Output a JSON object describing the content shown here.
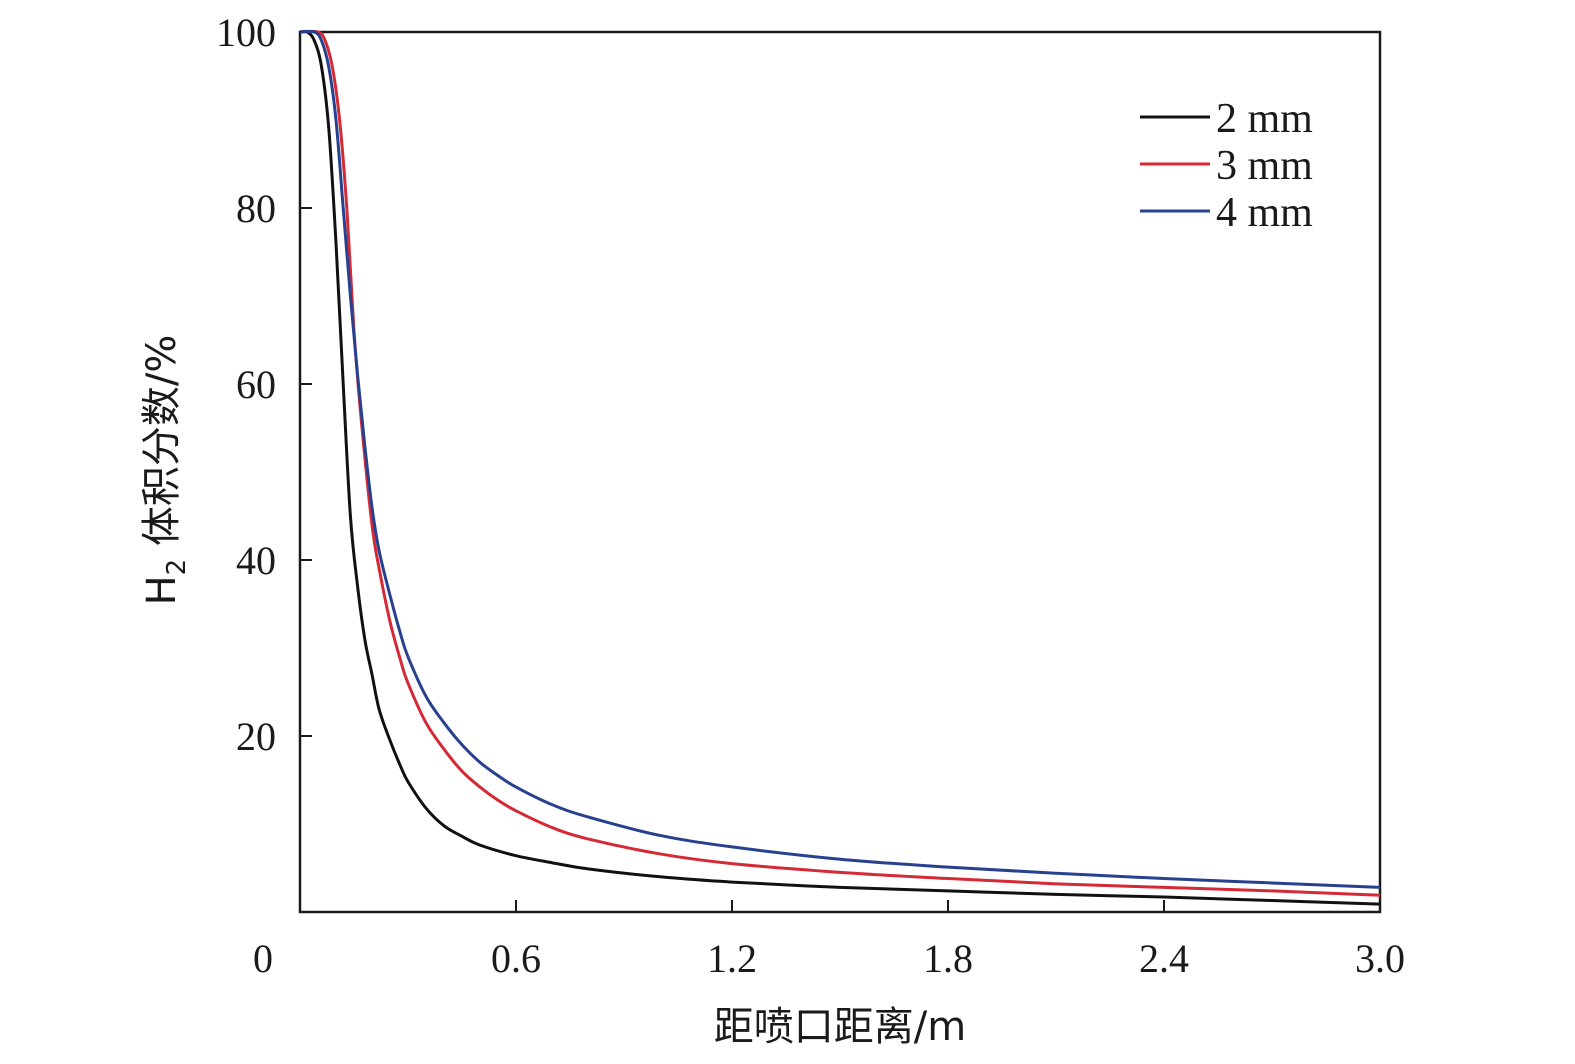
{
  "chart_data": {
    "type": "line",
    "xlabel": "距喷口距离/m",
    "ylabel_main": "H",
    "ylabel_sub": "2",
    "ylabel_rest": " 体积分数/%",
    "xlim": [
      0,
      3.0
    ],
    "ylim": [
      0,
      100
    ],
    "x_ticks": [
      0,
      0.6,
      1.2,
      1.8,
      2.4,
      3.0
    ],
    "x_tick_labels": [
      "0",
      "0.6",
      "1.2",
      "1.8",
      "2.4",
      "3.0"
    ],
    "y_ticks": [
      20,
      40,
      60,
      80,
      100
    ],
    "y_tick_labels": [
      "20",
      "40",
      "60",
      "80",
      "100"
    ],
    "grid": false,
    "legend_position": "top-right",
    "series": [
      {
        "name": "2 mm",
        "color": "#111111",
        "x": [
          0.0,
          0.02,
          0.04,
          0.06,
          0.08,
          0.1,
          0.12,
          0.14,
          0.16,
          0.18,
          0.2,
          0.22,
          0.25,
          0.28,
          0.3,
          0.35,
          0.4,
          0.45,
          0.5,
          0.6,
          0.7,
          0.8,
          1.0,
          1.2,
          1.5,
          1.8,
          2.1,
          2.4,
          2.7,
          3.0
        ],
        "y": [
          100,
          100,
          99,
          96,
          89,
          76,
          60,
          45,
          37,
          31,
          27,
          23,
          19.5,
          16.5,
          14.8,
          11.8,
          9.8,
          8.6,
          7.6,
          6.4,
          5.6,
          4.9,
          4.0,
          3.4,
          2.8,
          2.4,
          2.0,
          1.7,
          1.3,
          0.9
        ]
      },
      {
        "name": "3 mm",
        "color": "#d42a36",
        "x": [
          0.0,
          0.05,
          0.07,
          0.09,
          0.11,
          0.13,
          0.15,
          0.17,
          0.2,
          0.22,
          0.25,
          0.28,
          0.3,
          0.35,
          0.4,
          0.45,
          0.5,
          0.55,
          0.6,
          0.7,
          0.8,
          1.0,
          1.2,
          1.5,
          1.8,
          2.1,
          2.4,
          2.7,
          3.0
        ],
        "y": [
          100,
          100,
          99,
          96,
          90,
          80,
          66,
          56,
          44,
          39,
          33,
          28.5,
          26,
          21.5,
          18.5,
          16,
          14.2,
          12.7,
          11.5,
          9.6,
          8.3,
          6.6,
          5.5,
          4.5,
          3.8,
          3.2,
          2.8,
          2.4,
          1.9
        ]
      },
      {
        "name": "4 mm",
        "color": "#27418f",
        "x": [
          0.0,
          0.04,
          0.06,
          0.08,
          0.1,
          0.12,
          0.14,
          0.16,
          0.18,
          0.2,
          0.22,
          0.25,
          0.28,
          0.3,
          0.35,
          0.4,
          0.45,
          0.5,
          0.55,
          0.6,
          0.7,
          0.8,
          1.0,
          1.2,
          1.5,
          1.8,
          2.1,
          2.4,
          2.7,
          3.0
        ],
        "y": [
          100,
          100,
          99,
          96,
          90,
          80,
          70,
          61,
          53,
          46,
          41,
          36,
          31.5,
          29,
          24.5,
          21.5,
          19,
          17,
          15.5,
          14.2,
          12.2,
          10.8,
          8.7,
          7.4,
          6.0,
          5.1,
          4.4,
          3.8,
          3.3,
          2.8
        ]
      }
    ]
  }
}
